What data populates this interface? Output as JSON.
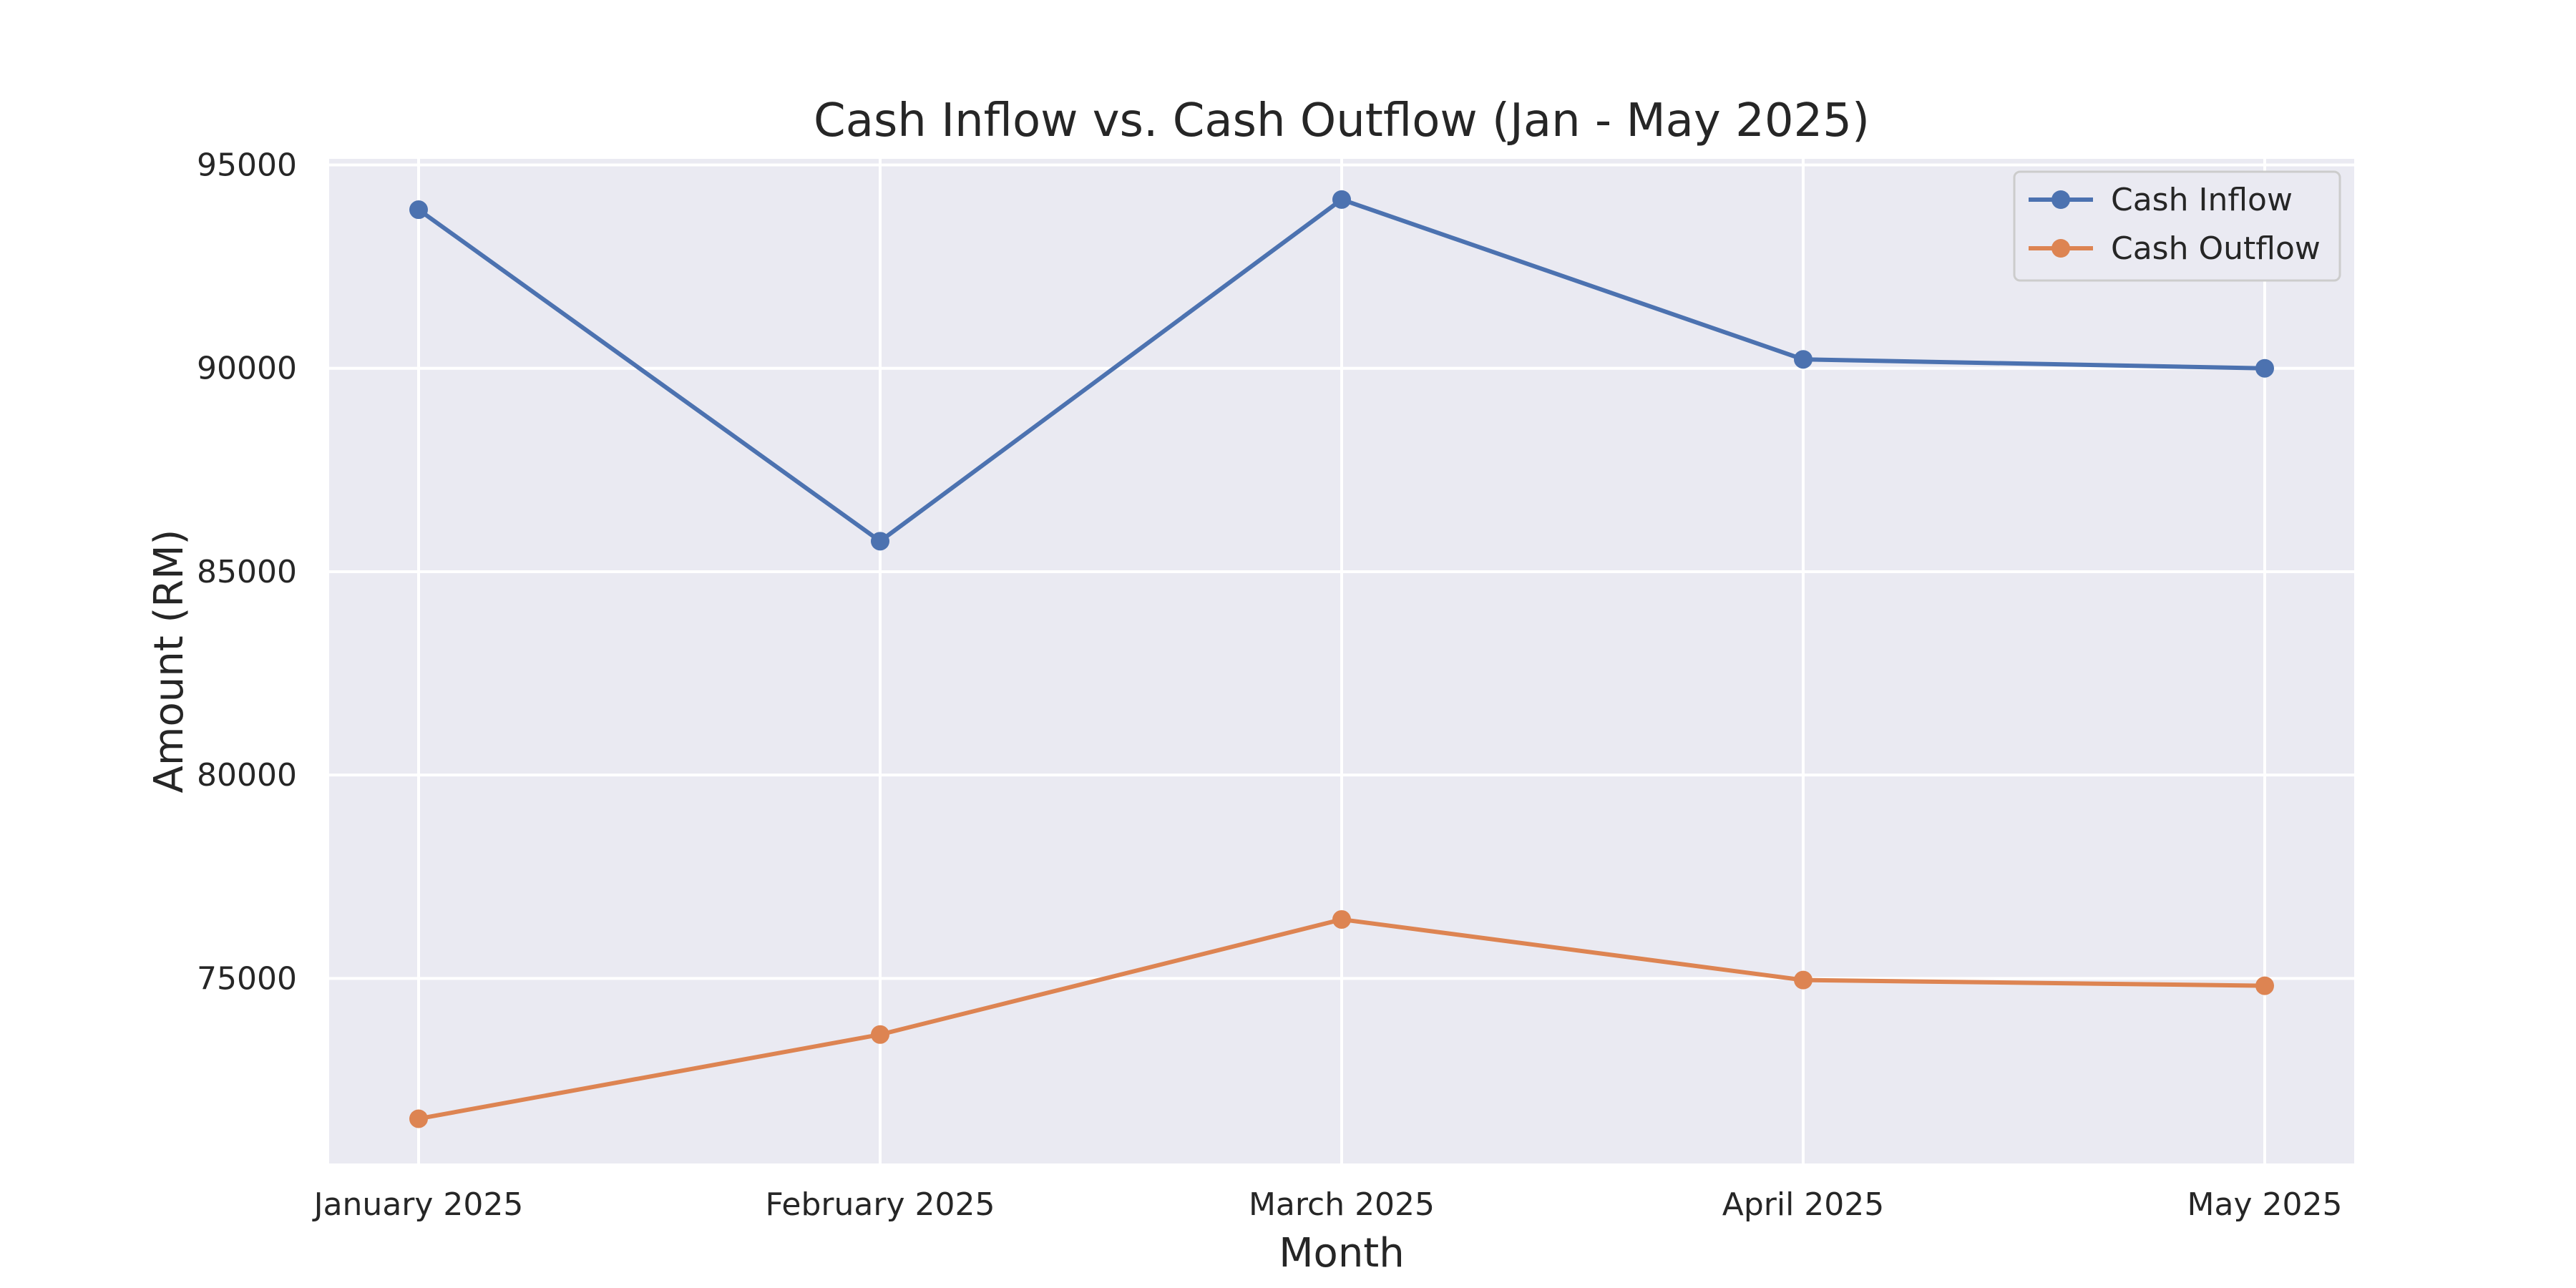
{
  "chart_data": {
    "type": "line",
    "title": "Cash Inflow vs. Cash Outflow (Jan - May 2025)",
    "xlabel": "Month",
    "ylabel": "Amount (RM)",
    "categories": [
      "January 2025",
      "February 2025",
      "March 2025",
      "April 2025",
      "May 2025"
    ],
    "series": [
      {
        "name": "Cash Inflow",
        "color": "#4c72b0",
        "values": [
          93900,
          85750,
          94150,
          90220,
          90000
        ]
      },
      {
        "name": "Cash Outflow",
        "color": "#dd8452",
        "values": [
          71550,
          73620,
          76450,
          74960,
          74820
        ]
      }
    ],
    "ylim": [
      70450,
      95150
    ],
    "yticks": [
      75000,
      80000,
      85000,
      90000,
      95000
    ],
    "grid": true,
    "legend_position": "top-right",
    "plot_background": "#eaeaf2",
    "grid_color": "#ffffff"
  }
}
